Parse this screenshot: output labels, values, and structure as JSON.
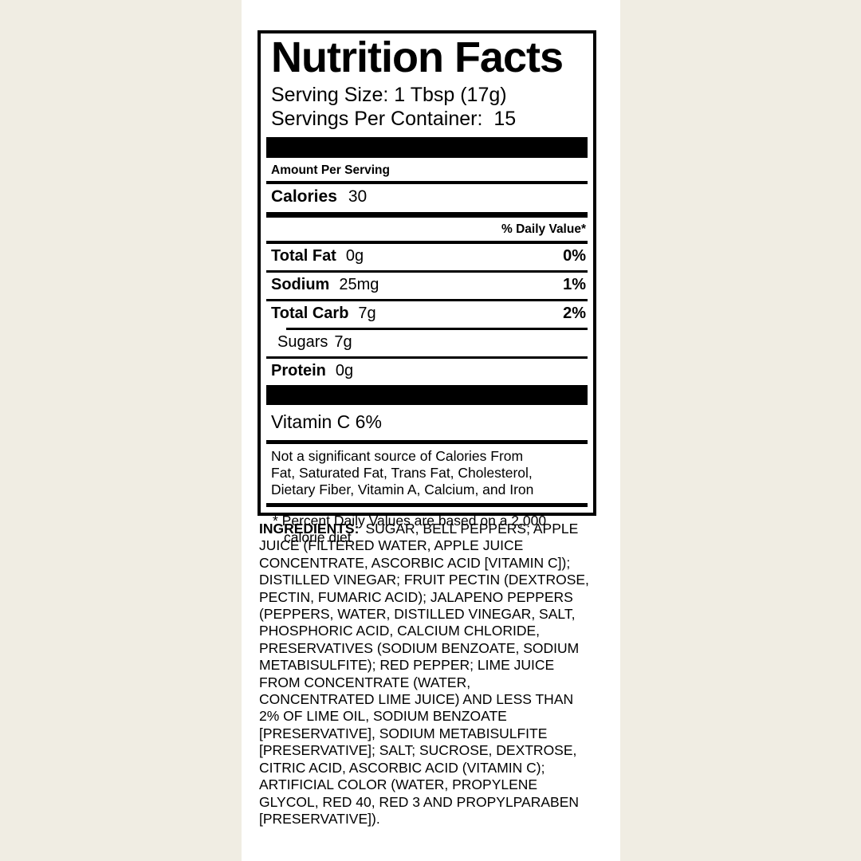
{
  "page": {
    "background_color": "#f0ede3",
    "label_background_color": "#ffffff",
    "text_color": "#000000"
  },
  "nutrition_facts": {
    "title": "Nutrition Facts",
    "serving_size": {
      "label": "Serving Size:",
      "value": "1 Tbsp (17g)"
    },
    "servings_per_container": {
      "label": "Servings Per Container:",
      "value": "15"
    },
    "amount_per_serving": "Amount Per Serving",
    "calories": {
      "label": "Calories",
      "value": "30"
    },
    "daily_value_header": "% Daily Value*",
    "nutrients": [
      {
        "label": "Total Fat",
        "amount": "0g",
        "dv": "0%"
      },
      {
        "label": "Sodium",
        "amount": "25mg",
        "dv": "1%"
      },
      {
        "label": "Total Carb",
        "amount": "7g",
        "dv": "2%"
      },
      {
        "label": "Sugars",
        "amount": "7g",
        "dv": ""
      },
      {
        "label": "Protein",
        "amount": "0g",
        "dv": ""
      }
    ],
    "vitamins": "Vitamin C 6%",
    "not_significant_source": "Not a significant source of Calories From\nFat, Saturated Fat, Trans Fat, Cholesterol,\nDietary Fiber, Vitamin A, Calcium, and Iron",
    "footnote": "* Percent Daily Values are based on a 2,000\ncalorie diet"
  },
  "ingredients": {
    "label": "INGREDIENTS:",
    "lines": [
      "SUGAR, BELL PEPPERS; APPLE",
      "JUICE (FILTERED WATER, APPLE JUICE",
      "CONCENTRATE, ASCORBIC ACID [VITAMIN C]);",
      "DISTILLED VINEGAR; FRUIT PECTIN (DEXTROSE,",
      "PECTIN, FUMARIC ACID); JALAPENO PEPPERS",
      "(PEPPERS, WATER, DISTILLED VINEGAR, SALT,",
      "PHOSPHORIC ACID, CALCIUM CHLORIDE,",
      "PRESERVATIVES (SODIUM BENZOATE, SODIUM",
      "METABISULFITE); RED PEPPER; LIME JUICE",
      "FROM CONCENTRATE (WATER,",
      "CONCENTRATED LIME JUICE) AND LESS THAN",
      "2% OF LIME OIL, SODIUM BENZOATE",
      "[PRESERVATIVE], SODIUM METABISULFITE",
      "[PRESERVATIVE]; SALT; SUCROSE, DEXTROSE,",
      "CITRIC ACID, ASCORBIC ACID (VITAMIN C);",
      "ARTIFICIAL COLOR (WATER, PROPYLENE",
      "GLYCOL, RED 40, RED 3 AND PROPYLPARABEN",
      "[PRESERVATIVE])."
    ]
  }
}
